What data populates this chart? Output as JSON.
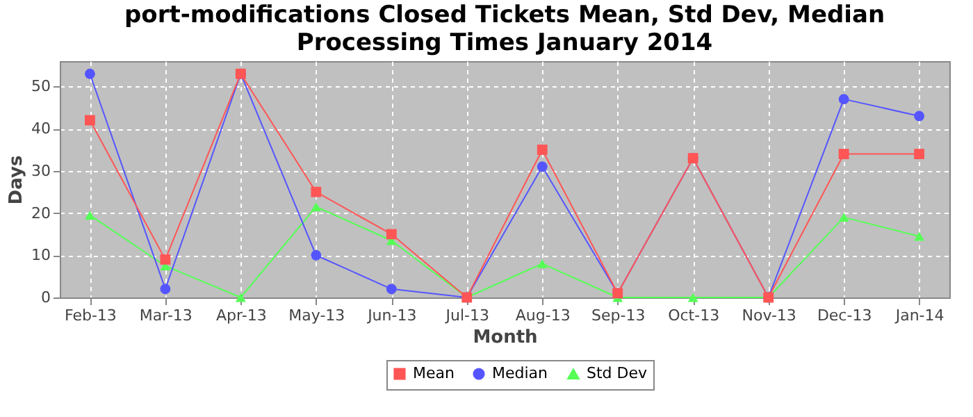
{
  "chart_data": {
    "type": "line",
    "title": "port-modifications Closed Tickets Mean, Std Dev, Median Processing Times January 2014",
    "xlabel": "Month",
    "ylabel": "Days",
    "categories": [
      "Feb-13",
      "Mar-13",
      "Apr-13",
      "May-13",
      "Jun-13",
      "Jul-13",
      "Aug-13",
      "Sep-13",
      "Oct-13",
      "Nov-13",
      "Dec-13",
      "Jan-14"
    ],
    "series": [
      {
        "name": "Mean",
        "color": "#ff5555",
        "marker": "square",
        "values": [
          42,
          9,
          53,
          25,
          15,
          0,
          35,
          1,
          33,
          0,
          34,
          34
        ]
      },
      {
        "name": "Median",
        "color": "#5555ff",
        "marker": "circle",
        "values": [
          53,
          2,
          53,
          10,
          2,
          0,
          31,
          1,
          33,
          0,
          47,
          43
        ]
      },
      {
        "name": "Std Dev",
        "color": "#55ff55",
        "marker": "triangle",
        "values": [
          19.5,
          7.5,
          0,
          21.5,
          13.5,
          0,
          8,
          0,
          0,
          0,
          19,
          14.5
        ]
      }
    ],
    "ylim": [
      0,
      56
    ],
    "yticks": [
      0,
      10,
      20,
      30,
      40,
      50
    ],
    "grid": true,
    "legend": "bottom"
  }
}
